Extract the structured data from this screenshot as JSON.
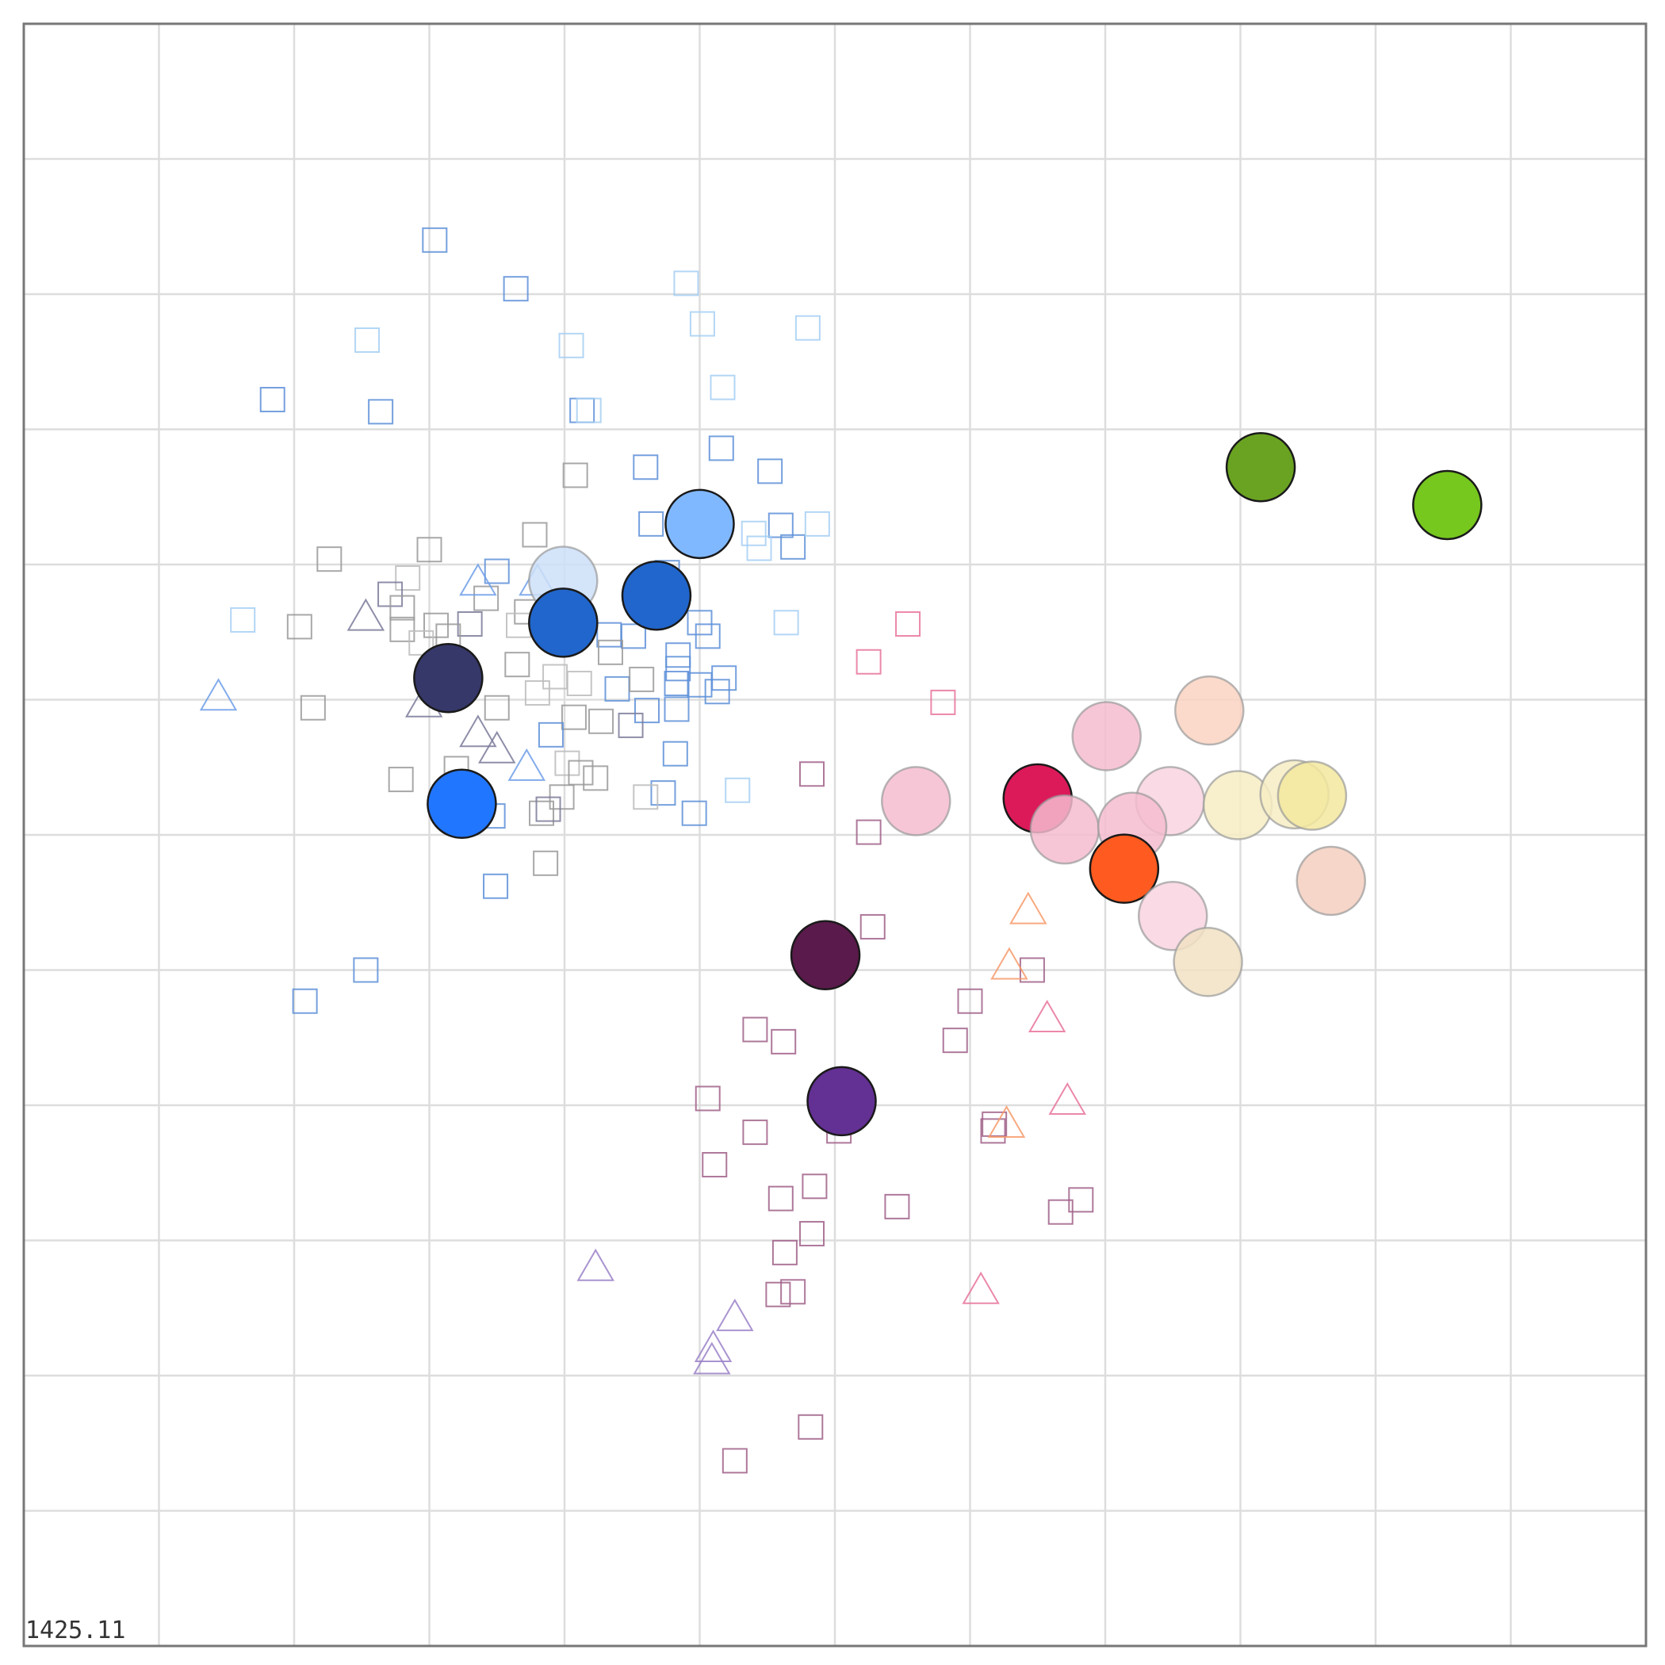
{
  "chart_data": {
    "type": "scatter",
    "title": "",
    "xlabel": "",
    "ylabel": "",
    "xlim": [
      0,
      12
    ],
    "ylim": [
      0,
      12
    ],
    "grid": true,
    "legend": "none",
    "corner_label": "1425.11",
    "colors": {
      "grid": "#dddddd",
      "frame": "#777777",
      "outline": "#1a1a1a"
    },
    "circles": [
      {
        "x": 9.15,
        "y": 8.72,
        "color": "#6aa321",
        "faded": false
      },
      {
        "x": 10.53,
        "y": 8.44,
        "color": "#76c71e",
        "faded": false
      },
      {
        "x": 5.0,
        "y": 8.3,
        "color": "#80b8ff",
        "faded": false
      },
      {
        "x": 3.99,
        "y": 7.88,
        "color": "#ccdff8",
        "faded": true
      },
      {
        "x": 4.68,
        "y": 7.77,
        "color": "#2166cc",
        "faded": false
      },
      {
        "x": 3.99,
        "y": 7.57,
        "color": "#2166cc",
        "faded": false
      },
      {
        "x": 3.14,
        "y": 7.16,
        "color": "#36386a",
        "faded": false
      },
      {
        "x": 3.24,
        "y": 6.23,
        "color": "#2176ff",
        "faded": false
      },
      {
        "x": 8.77,
        "y": 6.92,
        "color": "#fad3c2",
        "faded": true
      },
      {
        "x": 8.01,
        "y": 6.73,
        "color": "#f4bcd0",
        "faded": true
      },
      {
        "x": 6.6,
        "y": 6.25,
        "color": "#f4bcd0",
        "faded": true
      },
      {
        "x": 7.5,
        "y": 6.27,
        "color": "#dc1a5a",
        "faded": false
      },
      {
        "x": 8.48,
        "y": 6.25,
        "color": "#f8d4e0",
        "faded": true
      },
      {
        "x": 8.98,
        "y": 6.22,
        "color": "#f7edc3",
        "faded": true
      },
      {
        "x": 9.4,
        "y": 6.3,
        "color": "#f7edc3",
        "faded": true
      },
      {
        "x": 9.53,
        "y": 6.29,
        "color": "#f3e79e",
        "faded": true
      },
      {
        "x": 7.7,
        "y": 6.04,
        "color": "#f4bcd0",
        "faded": true
      },
      {
        "x": 8.2,
        "y": 6.06,
        "color": "#f4bcd0",
        "faded": true
      },
      {
        "x": 8.14,
        "y": 5.75,
        "color": "#ff5a1f",
        "faded": false
      },
      {
        "x": 9.67,
        "y": 5.66,
        "color": "#f5cfc0",
        "faded": true
      },
      {
        "x": 8.5,
        "y": 5.4,
        "color": "#f8d4e0",
        "faded": true
      },
      {
        "x": 8.76,
        "y": 5.06,
        "color": "#f1e2c3",
        "faded": true
      },
      {
        "x": 5.93,
        "y": 5.11,
        "color": "#5a1a4b",
        "faded": false
      },
      {
        "x": 6.05,
        "y": 4.03,
        "color": "#633093",
        "faded": false
      }
    ],
    "markers": [
      {
        "shape": "square",
        "x": 3.04,
        "y": 10.4,
        "color": "#5d8fd8"
      },
      {
        "shape": "square",
        "x": 3.64,
        "y": 10.04,
        "color": "#5d8fd8"
      },
      {
        "shape": "square",
        "x": 4.9,
        "y": 10.08,
        "color": "#a6cff3"
      },
      {
        "shape": "square",
        "x": 2.54,
        "y": 9.66,
        "color": "#a6cff3"
      },
      {
        "shape": "square",
        "x": 4.05,
        "y": 9.62,
        "color": "#a6cff3"
      },
      {
        "shape": "square",
        "x": 5.02,
        "y": 9.78,
        "color": "#a6cff3"
      },
      {
        "shape": "square",
        "x": 5.8,
        "y": 9.75,
        "color": "#a6cff3"
      },
      {
        "shape": "square",
        "x": 5.17,
        "y": 9.31,
        "color": "#a6cff3"
      },
      {
        "shape": "square",
        "x": 1.84,
        "y": 9.22,
        "color": "#5d8fd8"
      },
      {
        "shape": "square",
        "x": 2.64,
        "y": 9.13,
        "color": "#5d8fd8"
      },
      {
        "shape": "square",
        "x": 4.13,
        "y": 9.14,
        "color": "#5d8fd8"
      },
      {
        "shape": "square",
        "x": 4.18,
        "y": 9.14,
        "color": "#a6cff3"
      },
      {
        "shape": "square",
        "x": 5.16,
        "y": 8.86,
        "color": "#5d8fd8"
      },
      {
        "shape": "square",
        "x": 4.6,
        "y": 8.72,
        "color": "#5d8fd8"
      },
      {
        "shape": "square",
        "x": 5.52,
        "y": 8.69,
        "color": "#5d8fd8"
      },
      {
        "shape": "square",
        "x": 4.64,
        "y": 8.3,
        "color": "#5d8fd8"
      },
      {
        "shape": "square",
        "x": 5.4,
        "y": 8.23,
        "color": "#a6cff3"
      },
      {
        "shape": "square",
        "x": 5.6,
        "y": 8.29,
        "color": "#5d8fd8"
      },
      {
        "shape": "square",
        "x": 5.44,
        "y": 8.12,
        "color": "#a6cff3"
      },
      {
        "shape": "square",
        "x": 5.69,
        "y": 8.13,
        "color": "#5d8fd8"
      },
      {
        "shape": "square",
        "x": 4.76,
        "y": 7.94,
        "color": "#5d8fd8"
      },
      {
        "shape": "square",
        "x": 5.87,
        "y": 8.3,
        "color": "#a6cff3"
      },
      {
        "shape": "square",
        "x": 4.08,
        "y": 8.66,
        "color": "#999999"
      },
      {
        "shape": "square",
        "x": 3.78,
        "y": 8.22,
        "color": "#999999"
      },
      {
        "shape": "square",
        "x": 3.0,
        "y": 8.11,
        "color": "#999999"
      },
      {
        "shape": "square",
        "x": 2.26,
        "y": 8.04,
        "color": "#999999"
      },
      {
        "shape": "square",
        "x": 2.84,
        "y": 7.9,
        "color": "#bbbbbb"
      },
      {
        "shape": "square",
        "x": 3.5,
        "y": 7.95,
        "color": "#5d8fd8"
      },
      {
        "shape": "square",
        "x": 2.71,
        "y": 7.78,
        "color": "#7a7a9a"
      },
      {
        "shape": "square",
        "x": 2.8,
        "y": 7.68,
        "color": "#999999"
      },
      {
        "shape": "square",
        "x": 1.62,
        "y": 7.59,
        "color": "#a6cff3"
      },
      {
        "shape": "square",
        "x": 2.04,
        "y": 7.54,
        "color": "#999999"
      },
      {
        "shape": "square",
        "x": 3.42,
        "y": 7.75,
        "color": "#999999"
      },
      {
        "shape": "square",
        "x": 3.72,
        "y": 7.65,
        "color": "#999999"
      },
      {
        "shape": "square",
        "x": 2.8,
        "y": 7.52,
        "color": "#999999"
      },
      {
        "shape": "square",
        "x": 3.05,
        "y": 7.55,
        "color": "#999999"
      },
      {
        "shape": "square",
        "x": 3.3,
        "y": 7.56,
        "color": "#7a7a9a"
      },
      {
        "shape": "square",
        "x": 3.14,
        "y": 7.47,
        "color": "#999999"
      },
      {
        "shape": "square",
        "x": 2.94,
        "y": 7.42,
        "color": "#bbbbbb"
      },
      {
        "shape": "square",
        "x": 3.66,
        "y": 7.55,
        "color": "#bbbbbb"
      },
      {
        "shape": "square",
        "x": 5.0,
        "y": 7.57,
        "color": "#5d8fd8"
      },
      {
        "shape": "square",
        "x": 5.06,
        "y": 7.47,
        "color": "#5d8fd8"
      },
      {
        "shape": "square",
        "x": 4.33,
        "y": 7.48,
        "color": "#5d8fd8"
      },
      {
        "shape": "square",
        "x": 4.51,
        "y": 7.47,
        "color": "#5d8fd8"
      },
      {
        "shape": "square",
        "x": 4.34,
        "y": 7.35,
        "color": "#999999"
      },
      {
        "shape": "square",
        "x": 4.84,
        "y": 7.33,
        "color": "#5d8fd8"
      },
      {
        "shape": "square",
        "x": 4.84,
        "y": 7.23,
        "color": "#5d8fd8"
      },
      {
        "shape": "square",
        "x": 4.83,
        "y": 7.12,
        "color": "#5d8fd8"
      },
      {
        "shape": "square",
        "x": 5.0,
        "y": 7.11,
        "color": "#5d8fd8"
      },
      {
        "shape": "square",
        "x": 5.18,
        "y": 7.16,
        "color": "#5d8fd8"
      },
      {
        "shape": "square",
        "x": 5.13,
        "y": 7.06,
        "color": "#5d8fd8"
      },
      {
        "shape": "square",
        "x": 5.64,
        "y": 7.57,
        "color": "#a6cff3"
      },
      {
        "shape": "square",
        "x": 3.65,
        "y": 7.26,
        "color": "#999999"
      },
      {
        "shape": "square",
        "x": 3.93,
        "y": 7.17,
        "color": "#bbbbbb"
      },
      {
        "shape": "square",
        "x": 4.11,
        "y": 7.12,
        "color": "#bbbbbb"
      },
      {
        "shape": "square",
        "x": 4.39,
        "y": 7.08,
        "color": "#5d8fd8"
      },
      {
        "shape": "square",
        "x": 4.57,
        "y": 7.15,
        "color": "#999999"
      },
      {
        "shape": "square",
        "x": 4.61,
        "y": 6.92,
        "color": "#5d8fd8"
      },
      {
        "shape": "square",
        "x": 3.8,
        "y": 7.05,
        "color": "#bbbbbb"
      },
      {
        "shape": "square",
        "x": 2.14,
        "y": 6.94,
        "color": "#999999"
      },
      {
        "shape": "square",
        "x": 3.5,
        "y": 6.94,
        "color": "#999999"
      },
      {
        "shape": "square",
        "x": 4.07,
        "y": 6.87,
        "color": "#999999"
      },
      {
        "shape": "square",
        "x": 4.27,
        "y": 6.84,
        "color": "#999999"
      },
      {
        "shape": "square",
        "x": 4.49,
        "y": 6.81,
        "color": "#7a7a9a"
      },
      {
        "shape": "square",
        "x": 4.83,
        "y": 6.93,
        "color": "#5d8fd8"
      },
      {
        "shape": "square",
        "x": 3.9,
        "y": 6.74,
        "color": "#5d8fd8"
      },
      {
        "shape": "square",
        "x": 4.82,
        "y": 6.6,
        "color": "#5d8fd8"
      },
      {
        "shape": "square",
        "x": 4.02,
        "y": 6.53,
        "color": "#bbbbbb"
      },
      {
        "shape": "square",
        "x": 4.12,
        "y": 6.46,
        "color": "#999999"
      },
      {
        "shape": "square",
        "x": 4.23,
        "y": 6.42,
        "color": "#999999"
      },
      {
        "shape": "square",
        "x": 2.79,
        "y": 6.41,
        "color": "#999999"
      },
      {
        "shape": "square",
        "x": 3.2,
        "y": 6.49,
        "color": "#999999"
      },
      {
        "shape": "square",
        "x": 4.73,
        "y": 6.31,
        "color": "#5d8fd8"
      },
      {
        "shape": "square",
        "x": 3.98,
        "y": 6.28,
        "color": "#999999"
      },
      {
        "shape": "square",
        "x": 4.6,
        "y": 6.28,
        "color": "#bbbbbb"
      },
      {
        "shape": "square",
        "x": 3.21,
        "y": 6.22,
        "color": "#5d8fd8"
      },
      {
        "shape": "square",
        "x": 3.83,
        "y": 6.16,
        "color": "#999999"
      },
      {
        "shape": "square",
        "x": 3.88,
        "y": 6.19,
        "color": "#7a7a9a"
      },
      {
        "shape": "square",
        "x": 3.47,
        "y": 6.14,
        "color": "#5d8fd8"
      },
      {
        "shape": "square",
        "x": 4.96,
        "y": 6.16,
        "color": "#5d8fd8"
      },
      {
        "shape": "square",
        "x": 5.28,
        "y": 6.33,
        "color": "#a6cff3"
      },
      {
        "shape": "square",
        "x": 3.86,
        "y": 5.79,
        "color": "#999999"
      },
      {
        "shape": "square",
        "x": 3.49,
        "y": 5.62,
        "color": "#5d8fd8"
      },
      {
        "shape": "square",
        "x": 2.53,
        "y": 5.0,
        "color": "#5d8fd8"
      },
      {
        "shape": "square",
        "x": 2.08,
        "y": 4.77,
        "color": "#5d8fd8"
      },
      {
        "shape": "square",
        "x": 6.54,
        "y": 7.56,
        "color": "#e8739a"
      },
      {
        "shape": "square",
        "x": 6.25,
        "y": 7.28,
        "color": "#e8739a"
      },
      {
        "shape": "square",
        "x": 6.8,
        "y": 6.98,
        "color": "#e8739a"
      },
      {
        "shape": "square",
        "x": 5.83,
        "y": 6.45,
        "color": "#a06088"
      },
      {
        "shape": "square",
        "x": 6.25,
        "y": 6.02,
        "color": "#a06088"
      },
      {
        "shape": "square",
        "x": 6.28,
        "y": 5.32,
        "color": "#a06088"
      },
      {
        "shape": "square",
        "x": 7.46,
        "y": 5.0,
        "color": "#a06088"
      },
      {
        "shape": "square",
        "x": 7.0,
        "y": 4.77,
        "color": "#a06088"
      },
      {
        "shape": "square",
        "x": 6.89,
        "y": 4.48,
        "color": "#a06088"
      },
      {
        "shape": "square",
        "x": 5.41,
        "y": 4.56,
        "color": "#a06088"
      },
      {
        "shape": "square",
        "x": 5.62,
        "y": 4.47,
        "color": "#a06088"
      },
      {
        "shape": "square",
        "x": 5.06,
        "y": 4.05,
        "color": "#a06088"
      },
      {
        "shape": "square",
        "x": 5.41,
        "y": 3.8,
        "color": "#a06088"
      },
      {
        "shape": "square",
        "x": 6.03,
        "y": 3.81,
        "color": "#a06088"
      },
      {
        "shape": "square",
        "x": 7.18,
        "y": 3.86,
        "color": "#a06088"
      },
      {
        "shape": "square",
        "x": 7.17,
        "y": 3.81,
        "color": "#a06088"
      },
      {
        "shape": "square",
        "x": 5.11,
        "y": 3.56,
        "color": "#a06088"
      },
      {
        "shape": "square",
        "x": 5.85,
        "y": 3.4,
        "color": "#a06088"
      },
      {
        "shape": "square",
        "x": 5.6,
        "y": 3.31,
        "color": "#a06088"
      },
      {
        "shape": "square",
        "x": 6.46,
        "y": 3.25,
        "color": "#a06088"
      },
      {
        "shape": "square",
        "x": 7.67,
        "y": 3.21,
        "color": "#a06088"
      },
      {
        "shape": "square",
        "x": 7.82,
        "y": 3.3,
        "color": "#a06088"
      },
      {
        "shape": "square",
        "x": 5.83,
        "y": 3.05,
        "color": "#a06088"
      },
      {
        "shape": "square",
        "x": 5.63,
        "y": 2.91,
        "color": "#a06088"
      },
      {
        "shape": "square",
        "x": 5.58,
        "y": 2.6,
        "color": "#a06088"
      },
      {
        "shape": "square",
        "x": 5.69,
        "y": 2.62,
        "color": "#a06088"
      },
      {
        "shape": "square",
        "x": 5.82,
        "y": 1.62,
        "color": "#a06088"
      },
      {
        "shape": "square",
        "x": 5.26,
        "y": 1.37,
        "color": "#a06088"
      },
      {
        "shape": "triangle",
        "x": 3.36,
        "y": 7.86,
        "color": "#6d9ee8"
      },
      {
        "shape": "triangle",
        "x": 3.8,
        "y": 7.86,
        "color": "#6d9ee8"
      },
      {
        "shape": "triangle",
        "x": 2.53,
        "y": 7.6,
        "color": "#7a7a9a"
      },
      {
        "shape": "triangle",
        "x": 1.44,
        "y": 7.01,
        "color": "#6d9ee8"
      },
      {
        "shape": "triangle",
        "x": 2.96,
        "y": 6.96,
        "color": "#7a7a9a"
      },
      {
        "shape": "triangle",
        "x": 3.36,
        "y": 6.74,
        "color": "#7a7a9a"
      },
      {
        "shape": "triangle",
        "x": 3.5,
        "y": 6.62,
        "color": "#7a7a9a"
      },
      {
        "shape": "triangle",
        "x": 3.72,
        "y": 6.49,
        "color": "#6d9ee8"
      },
      {
        "shape": "triangle",
        "x": 7.43,
        "y": 5.43,
        "color": "#f79a6a"
      },
      {
        "shape": "triangle",
        "x": 7.29,
        "y": 5.02,
        "color": "#f79a6a"
      },
      {
        "shape": "triangle",
        "x": 7.57,
        "y": 4.63,
        "color": "#e8739a"
      },
      {
        "shape": "triangle",
        "x": 7.72,
        "y": 4.02,
        "color": "#e8739a"
      },
      {
        "shape": "triangle",
        "x": 7.27,
        "y": 3.85,
        "color": "#f79a6a"
      },
      {
        "shape": "triangle",
        "x": 4.23,
        "y": 2.79,
        "color": "#9a80c8"
      },
      {
        "shape": "triangle",
        "x": 5.26,
        "y": 2.42,
        "color": "#9a80c8"
      },
      {
        "shape": "triangle",
        "x": 5.1,
        "y": 2.19,
        "color": "#9a80c8"
      },
      {
        "shape": "triangle",
        "x": 5.09,
        "y": 2.1,
        "color": "#9a80c8"
      },
      {
        "shape": "triangle",
        "x": 7.08,
        "y": 2.62,
        "color": "#e8739a"
      }
    ]
  }
}
